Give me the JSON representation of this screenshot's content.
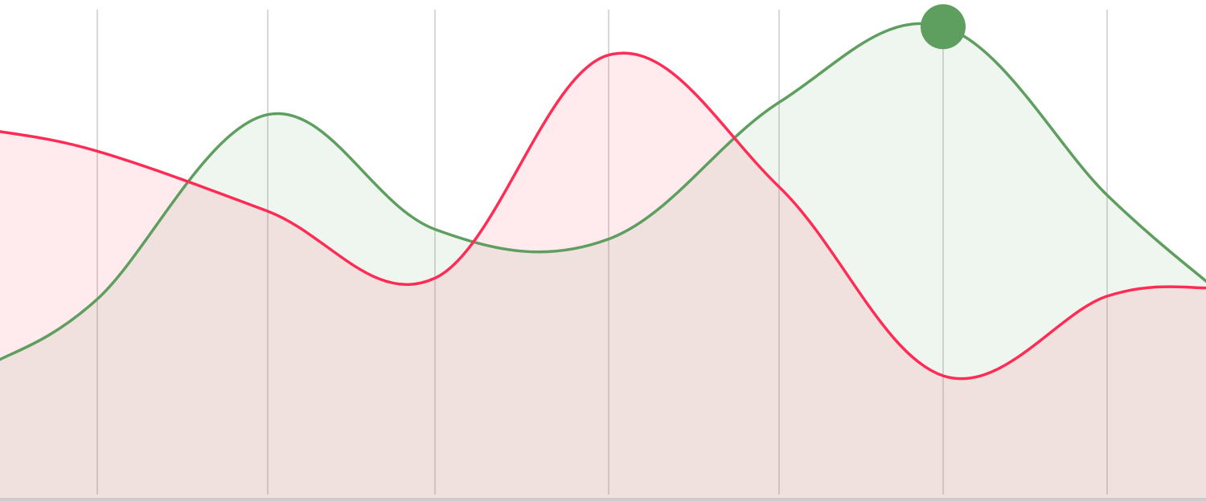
{
  "chart_data": {
    "type": "area",
    "x": [
      0,
      1,
      2,
      3,
      4,
      5,
      6,
      7
    ],
    "ylim": [
      0,
      100
    ],
    "grid": true,
    "highlight": {
      "series_index": 0,
      "point_index": 5
    },
    "series": [
      {
        "color": "#5e9e5e",
        "fill": "rgba(94,158,94,0.10)",
        "values": [
          40.7,
          78.5,
          55.0,
          53.0,
          81.0,
          96.5,
          62.0,
          43.0
        ]
      },
      {
        "color": "#ff2d55",
        "fill": "rgba(255,45,85,0.10)",
        "values": [
          71.0,
          58.7,
          45.0,
          90.7,
          63.7,
          25.0,
          41.3,
          43.0
        ]
      }
    ]
  },
  "colors": {
    "gridline": "#cccccc",
    "baseline": "#cccccc"
  }
}
